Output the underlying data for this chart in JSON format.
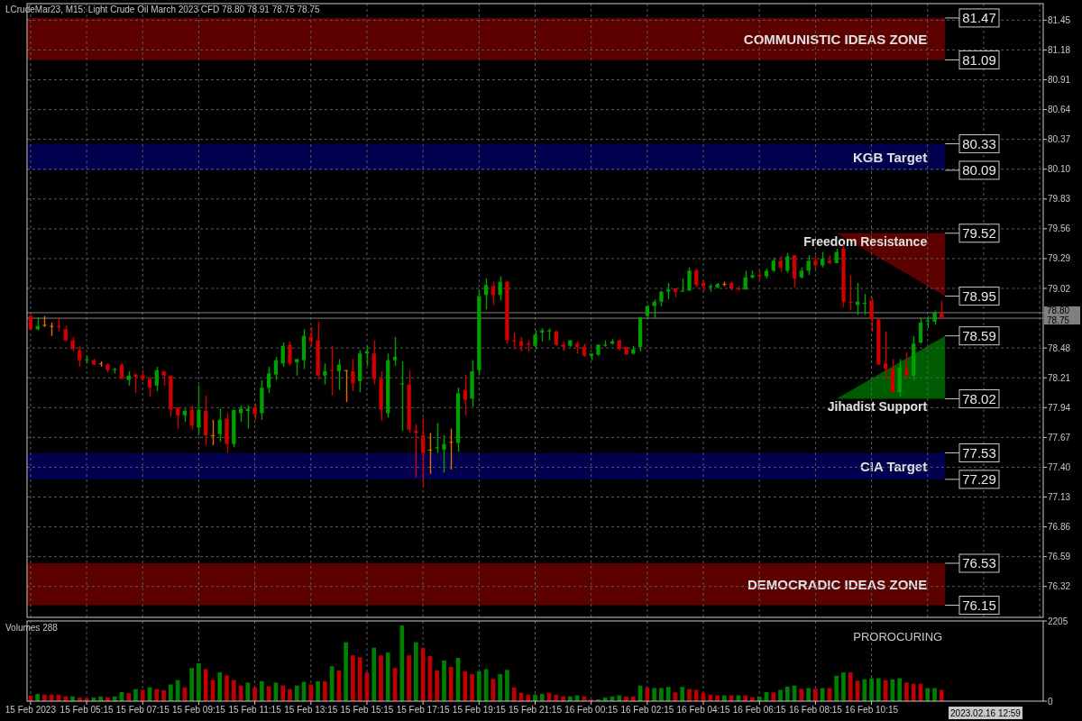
{
  "chart_data": [
    {
      "type": "candlestick",
      "title": "LCrudeMar23, M15:  Light Crude Oil March 2023 CFD  78.80 78.91 78.75 78.75",
      "categories": [
        null,
        null,
        null,
        null,
        null,
        null,
        null,
        null,
        null,
        null,
        null,
        null,
        null,
        null,
        null,
        null,
        null,
        null,
        null,
        null,
        null,
        null,
        null,
        null,
        null,
        null,
        null,
        null,
        null,
        null,
        null,
        null,
        null,
        null,
        null,
        null,
        null,
        null,
        null,
        null,
        null,
        null,
        null,
        null,
        null,
        null,
        null,
        null,
        null,
        null,
        null,
        null,
        null,
        null,
        null,
        null,
        null,
        null,
        null,
        null,
        null,
        null,
        null,
        null,
        null,
        null,
        null,
        null,
        null,
        null,
        null,
        null,
        null,
        null,
        null,
        null,
        null,
        null,
        null,
        null,
        null,
        null,
        null,
        null,
        null,
        null,
        null,
        null,
        null,
        null,
        null,
        null,
        null,
        null,
        null,
        null,
        null,
        null,
        null,
        null,
        null,
        null,
        null,
        null,
        null,
        null,
        null,
        null,
        null,
        null,
        null,
        null,
        null,
        null,
        null,
        null,
        null,
        null,
        null,
        null,
        null,
        null,
        null,
        null,
        null,
        null,
        null,
        null,
        null,
        null,
        null,
        null,
        null,
        null,
        null,
        null,
        null,
        null,
        null,
        null,
        null,
        null,
        null,
        null,
        null
      ],
      "ohlc": [
        [
          78.77,
          78.78,
          78.65,
          78.65
        ],
        [
          78.65,
          78.76,
          78.64,
          78.68
        ],
        [
          78.69,
          78.77,
          78.67,
          78.69
        ],
        [
          78.68,
          78.71,
          78.59,
          78.68
        ],
        [
          78.68,
          78.76,
          78.63,
          78.67
        ],
        [
          78.65,
          78.68,
          78.54,
          78.55
        ],
        [
          78.55,
          78.58,
          78.45,
          78.47
        ],
        [
          78.46,
          78.5,
          78.31,
          78.37
        ],
        [
          78.37,
          78.41,
          78.34,
          78.38
        ],
        [
          78.37,
          78.38,
          78.33,
          78.33
        ],
        [
          78.34,
          78.36,
          78.31,
          78.34
        ],
        [
          78.33,
          78.34,
          78.26,
          78.28
        ],
        [
          78.28,
          78.3,
          78.25,
          78.29
        ],
        [
          78.33,
          78.34,
          78.2,
          78.2
        ],
        [
          78.19,
          78.27,
          78.14,
          78.23
        ],
        [
          78.24,
          78.25,
          78.07,
          78.22
        ],
        [
          78.23,
          78.28,
          78.18,
          78.2
        ],
        [
          78.2,
          78.22,
          78.04,
          78.12
        ],
        [
          78.14,
          78.31,
          78.09,
          78.28
        ],
        [
          78.27,
          78.27,
          78.14,
          78.23
        ],
        [
          78.23,
          78.23,
          77.86,
          77.92
        ],
        [
          77.94,
          77.94,
          77.75,
          77.87
        ],
        [
          77.87,
          77.93,
          77.81,
          77.91
        ],
        [
          77.92,
          77.96,
          77.74,
          77.78
        ],
        [
          77.76,
          78.14,
          77.69,
          77.92
        ],
        [
          77.91,
          78.05,
          77.6,
          77.69
        ],
        [
          77.69,
          77.83,
          77.6,
          77.69
        ],
        [
          77.7,
          77.93,
          77.63,
          77.83
        ],
        [
          77.84,
          77.89,
          77.53,
          77.61
        ],
        [
          77.61,
          77.92,
          77.58,
          77.92
        ],
        [
          77.89,
          77.96,
          77.81,
          77.93
        ],
        [
          77.91,
          77.96,
          77.75,
          77.93
        ],
        [
          77.94,
          77.98,
          77.83,
          77.88
        ],
        [
          77.89,
          78.19,
          77.83,
          78.12
        ],
        [
          78.12,
          78.31,
          78.07,
          78.25
        ],
        [
          78.24,
          78.4,
          78.19,
          78.37
        ],
        [
          78.34,
          78.53,
          78.31,
          78.5
        ],
        [
          78.51,
          78.54,
          78.32,
          78.34
        ],
        [
          78.35,
          78.38,
          78.23,
          78.38
        ],
        [
          78.37,
          78.65,
          78.29,
          78.59
        ],
        [
          78.58,
          78.67,
          78.49,
          78.54
        ],
        [
          78.55,
          78.72,
          78.19,
          78.23
        ],
        [
          78.23,
          78.34,
          78.15,
          78.27
        ],
        [
          78.28,
          78.5,
          78.05,
          78.27
        ],
        [
          78.27,
          78.38,
          78.1,
          78.33
        ],
        [
          78.28,
          78.28,
          77.99,
          78.28
        ],
        [
          78.27,
          78.38,
          78.09,
          78.16
        ],
        [
          78.18,
          78.46,
          78.08,
          78.43
        ],
        [
          78.43,
          78.5,
          78.32,
          78.45
        ],
        [
          78.43,
          78.55,
          78.15,
          78.2
        ],
        [
          78.2,
          78.27,
          77.82,
          77.92
        ],
        [
          77.89,
          78.43,
          77.85,
          78.37
        ],
        [
          78.37,
          78.58,
          78.32,
          78.4
        ],
        [
          78.15,
          78.36,
          77.73,
          78.16
        ],
        [
          78.15,
          78.28,
          77.71,
          77.74
        ],
        [
          77.73,
          77.79,
          77.31,
          77.71
        ],
        [
          77.69,
          77.85,
          77.22,
          77.53
        ],
        [
          77.56,
          77.71,
          77.34,
          77.56
        ],
        [
          77.57,
          77.8,
          77.53,
          77.58
        ],
        [
          77.56,
          77.69,
          77.35,
          77.61
        ],
        [
          77.63,
          77.75,
          77.38,
          77.63
        ],
        [
          77.62,
          78.12,
          77.54,
          78.07
        ],
        [
          78.1,
          78.24,
          77.87,
          78.01
        ],
        [
          78.02,
          78.37,
          77.95,
          78.27
        ],
        [
          78.28,
          79.01,
          78.23,
          78.95
        ],
        [
          78.96,
          79.11,
          78.83,
          79.05
        ],
        [
          79.04,
          79.08,
          78.87,
          78.96
        ],
        [
          78.96,
          79.13,
          78.91,
          79.08
        ],
        [
          79.08,
          79.09,
          78.52,
          78.55
        ],
        [
          78.55,
          78.62,
          78.47,
          78.54
        ],
        [
          78.54,
          78.58,
          78.45,
          78.5
        ],
        [
          78.52,
          78.55,
          78.45,
          78.51
        ],
        [
          78.5,
          78.64,
          78.47,
          78.6
        ],
        [
          78.62,
          78.66,
          78.54,
          78.64
        ],
        [
          78.63,
          78.66,
          78.55,
          78.64
        ],
        [
          78.63,
          78.64,
          78.5,
          78.51
        ],
        [
          78.51,
          78.54,
          78.45,
          78.49
        ],
        [
          78.5,
          78.55,
          78.49,
          78.55
        ],
        [
          78.52,
          78.54,
          78.43,
          78.49
        ],
        [
          78.49,
          78.52,
          78.4,
          78.41
        ],
        [
          78.41,
          78.43,
          78.37,
          78.43
        ],
        [
          78.42,
          78.51,
          78.41,
          78.51
        ],
        [
          78.5,
          78.55,
          78.49,
          78.51
        ],
        [
          78.52,
          78.56,
          78.51,
          78.54
        ],
        [
          78.55,
          78.55,
          78.46,
          78.47
        ],
        [
          78.49,
          78.49,
          78.42,
          78.42
        ],
        [
          78.43,
          78.5,
          78.42,
          78.47
        ],
        [
          78.49,
          78.76,
          78.45,
          78.76
        ],
        [
          78.77,
          78.87,
          78.74,
          78.86
        ],
        [
          78.86,
          78.92,
          78.75,
          78.9
        ],
        [
          78.9,
          79.0,
          78.86,
          78.99
        ],
        [
          78.99,
          79.07,
          78.92,
          79.01
        ],
        [
          79.02,
          79.02,
          78.94,
          78.99
        ],
        [
          78.99,
          79.11,
          78.99,
          79.0
        ],
        [
          79.0,
          79.21,
          79.0,
          79.18
        ],
        [
          79.18,
          79.2,
          79.03,
          79.05
        ],
        [
          79.07,
          79.09,
          78.99,
          79.04
        ],
        [
          79.03,
          79.06,
          78.99,
          79.04
        ],
        [
          79.03,
          79.07,
          79.02,
          79.06
        ],
        [
          79.06,
          79.08,
          79.04,
          79.06
        ],
        [
          79.07,
          79.08,
          79.0,
          79.02
        ],
        [
          79.02,
          79.04,
          79.0,
          79.01
        ],
        [
          79.01,
          79.18,
          79.01,
          79.12
        ],
        [
          79.12,
          79.18,
          79.11,
          79.14
        ],
        [
          79.14,
          79.18,
          79.1,
          79.13
        ],
        [
          79.13,
          79.2,
          79.11,
          79.18
        ],
        [
          79.18,
          79.3,
          79.17,
          79.27
        ],
        [
          79.27,
          79.31,
          79.17,
          79.21
        ],
        [
          79.18,
          79.34,
          79.16,
          79.31
        ],
        [
          79.32,
          79.32,
          79.03,
          79.11
        ],
        [
          79.12,
          79.21,
          79.11,
          79.18
        ],
        [
          79.18,
          79.32,
          79.14,
          79.27
        ],
        [
          79.27,
          79.32,
          79.2,
          79.23
        ],
        [
          79.23,
          79.35,
          79.21,
          79.29
        ],
        [
          79.27,
          79.32,
          79.24,
          79.25
        ],
        [
          79.25,
          79.38,
          79.25,
          79.35
        ],
        [
          79.38,
          79.42,
          78.85,
          78.9
        ],
        [
          78.9,
          79.14,
          78.82,
          78.89
        ],
        [
          78.87,
          79.07,
          78.78,
          78.9
        ],
        [
          78.88,
          78.97,
          78.78,
          78.89
        ],
        [
          78.91,
          78.94,
          78.63,
          78.74
        ],
        [
          78.74,
          78.75,
          78.33,
          78.33
        ],
        [
          78.34,
          78.63,
          78.2,
          78.29
        ],
        [
          78.29,
          78.38,
          78.08,
          78.08
        ],
        [
          78.08,
          78.38,
          78.04,
          78.3
        ],
        [
          78.29,
          78.44,
          78.22,
          78.23
        ],
        [
          78.23,
          78.59,
          78.19,
          78.52
        ],
        [
          78.53,
          78.76,
          78.52,
          78.71
        ],
        [
          78.72,
          78.77,
          78.66,
          78.73
        ],
        [
          78.72,
          78.82,
          78.69,
          78.8
        ],
        [
          78.8,
          78.91,
          78.75,
          78.75
        ],
        null,
        null,
        null,
        null,
        null,
        null,
        null,
        null,
        null,
        null,
        null,
        null,
        null,
        null
      ],
      "ylim": [
        76.04,
        81.6
      ],
      "yticks": [
        81.45,
        81.18,
        80.91,
        80.64,
        80.37,
        {
          "value": 80.1,
          "label": "80.10"
        },
        79.83,
        79.56,
        79.29,
        79.02,
        78.48,
        78.21,
        77.94,
        77.67,
        {
          "value": 77.4,
          "label": "77.40"
        },
        77.13,
        76.86,
        76.59,
        76.32
      ],
      "grid": true,
      "bands": [
        {
          "axis": "y",
          "from": 81.09,
          "to": 81.47,
          "label": "COMMUNISTIC IDEAS ZONE",
          "color": "#5c0000"
        },
        {
          "axis": "y",
          "from": 80.09,
          "to": 80.33,
          "label": "KGB Target",
          "color": "#00004f"
        },
        {
          "axis": "y",
          "from": 77.29,
          "to": 77.53,
          "label": "CIA Target",
          "color": "#00004f"
        },
        {
          "axis": "y",
          "from": 76.15,
          "to": 76.53,
          "label": "DEMOCRADIC IDEAS ZONE",
          "color": "#5c0000"
        }
      ],
      "ref_lines": [
        {
          "axis": "y",
          "value": 78.8,
          "label": "78.80",
          "color": "#808080"
        },
        {
          "axis": "y",
          "value": 78.75,
          "label": "78.75",
          "color": "#808080"
        },
        {
          "axis": "y",
          "value": 81.47,
          "label": "81.47"
        },
        {
          "axis": "y",
          "value": 81.09,
          "label": "81.09"
        },
        {
          "axis": "y",
          "value": 80.33,
          "label": "80.33"
        },
        {
          "axis": "y",
          "value": 80.09,
          "label": "80.09"
        },
        {
          "axis": "y",
          "value": 77.53,
          "label": "77.53"
        },
        {
          "axis": "y",
          "value": 77.29,
          "label": "77.29"
        },
        {
          "axis": "y",
          "value": 76.53,
          "label": "76.53"
        },
        {
          "axis": "y",
          "value": 76.15,
          "label": "76.15"
        },
        {
          "axis": "y",
          "value": 79.52,
          "label": "79.52"
        },
        {
          "axis": "y",
          "value": 78.95,
          "label": "78.95"
        },
        {
          "axis": "y",
          "value": 78.59,
          "label": "78.59"
        },
        {
          "axis": "y",
          "value": 78.02,
          "label": "78.02"
        }
      ],
      "annotations": [
        "Freedom Resistance",
        "Jihadist Support"
      ]
    },
    {
      "type": "bar",
      "categories": [
        "15 Feb 2023",
        null,
        null,
        null,
        null,
        null,
        null,
        null,
        "15 Feb 05:15",
        null,
        null,
        null,
        null,
        null,
        null,
        null,
        "15 Feb 07:15",
        null,
        null,
        null,
        null,
        null,
        null,
        null,
        "15 Feb 09:15",
        null,
        null,
        null,
        null,
        null,
        null,
        null,
        "15 Feb 11:15",
        null,
        null,
        null,
        null,
        null,
        null,
        null,
        "15 Feb 13:15",
        null,
        null,
        null,
        null,
        null,
        null,
        null,
        "15 Feb 15:15",
        null,
        null,
        null,
        null,
        null,
        null,
        null,
        "15 Feb 17:15",
        null,
        null,
        null,
        null,
        null,
        null,
        null,
        "15 Feb 19:15",
        null,
        null,
        null,
        null,
        null,
        null,
        null,
        "15 Feb 21:15",
        null,
        null,
        null,
        null,
        null,
        null,
        null,
        "16 Feb 00:15",
        null,
        null,
        null,
        null,
        null,
        null,
        null,
        "16 Feb 02:15",
        null,
        null,
        null,
        null,
        null,
        null,
        null,
        "16 Feb 04:15",
        null,
        null,
        null,
        null,
        null,
        null,
        null,
        "16 Feb 06:15",
        null,
        null,
        null,
        null,
        null,
        null,
        null,
        "16 Feb 08:15",
        null,
        null,
        null,
        null,
        null,
        null,
        null,
        "16 Feb 10:15",
        null,
        null,
        null,
        null,
        null,
        null,
        null,
        null,
        null,
        null,
        null,
        null,
        null,
        null,
        null,
        null,
        null,
        null,
        null,
        null,
        null,
        null,
        null,
        null
      ],
      "values": [
        150,
        200,
        180,
        180,
        180,
        130,
        130,
        100,
        80,
        100,
        130,
        110,
        130,
        250,
        220,
        330,
        310,
        380,
        330,
        300,
        460,
        580,
        380,
        910,
        1040,
        880,
        580,
        790,
        710,
        580,
        430,
        510,
        380,
        550,
        410,
        510,
        430,
        330,
        430,
        530,
        460,
        550,
        550,
        960,
        840,
        1620,
        1260,
        1210,
        790,
        1470,
        1260,
        1340,
        910,
        2080,
        1260,
        1620,
        1470,
        1240,
        840,
        1120,
        940,
        1190,
        820,
        740,
        820,
        880,
        610,
        740,
        860,
        380,
        230,
        180,
        180,
        200,
        230,
        180,
        130,
        130,
        160,
        130,
        50,
        50,
        100,
        130,
        160,
        130,
        130,
        430,
        370,
        360,
        360,
        390,
        240,
        390,
        330,
        310,
        230,
        180,
        160,
        160,
        160,
        160,
        160,
        110,
        130,
        250,
        240,
        310,
        400,
        430,
        340,
        360,
        340,
        360,
        360,
        700,
        790,
        790,
        560,
        600,
        630,
        630,
        580,
        600,
        630,
        510,
        480,
        480,
        360,
        360,
        310,
        null,
        null,
        null,
        null,
        null,
        null,
        null,
        null,
        null,
        null,
        null,
        null,
        null,
        null
      ],
      "colors": [
        "#c00000",
        "#008000",
        "#c00000",
        "#c00000",
        "#c00000",
        "#c00000",
        "#008000",
        "#c00000",
        "#c00000",
        "#008000",
        "#008000",
        "#c00000",
        "#008000",
        "#008000",
        "#c00000",
        "#008000",
        "#c00000",
        "#008000",
        "#c00000",
        "#c00000",
        "#008000",
        "#008000",
        "#c00000",
        "#008000",
        "#008000",
        "#c00000",
        "#c00000",
        "#008000",
        "#c00000",
        "#c00000",
        "#c00000",
        "#008000",
        "#c00000",
        "#008000",
        "#c00000",
        "#008000",
        "#c00000",
        "#c00000",
        "#008000",
        "#008000",
        "#c00000",
        "#008000",
        "#c00000",
        "#008000",
        "#c00000",
        "#008000",
        "#c00000",
        "#c00000",
        "#c00000",
        "#008000",
        "#c00000",
        "#008000",
        "#c00000",
        "#008000",
        "#c00000",
        "#008000",
        "#c00000",
        "#c00000",
        "#c00000",
        "#008000",
        "#c00000",
        "#008000",
        "#c00000",
        "#c00000",
        "#008000",
        "#008000",
        "#c00000",
        "#008000",
        "#008000",
        "#c00000",
        "#c00000",
        "#c00000",
        "#008000",
        "#008000",
        "#c00000",
        "#c00000",
        "#c00000",
        "#008000",
        "#008000",
        "#c00000",
        "#c00000",
        "#008000",
        "#008000",
        "#008000",
        "#008000",
        "#c00000",
        "#c00000",
        "#008000",
        "#c00000",
        "#008000",
        "#008000",
        "#008000",
        "#c00000",
        "#008000",
        "#c00000",
        "#c00000",
        "#c00000",
        "#c00000",
        "#c00000",
        "#008000",
        "#c00000",
        "#008000",
        "#c00000",
        "#c00000",
        "#008000",
        "#008000",
        "#c00000",
        "#008000",
        "#008000",
        "#008000",
        "#c00000",
        "#008000",
        "#c00000",
        "#008000",
        "#c00000",
        "#008000",
        "#008000",
        "#c00000",
        "#c00000",
        "#008000",
        "#008000",
        "#008000",
        "#c00000",
        "#008000",
        "#008000",
        "#c00000",
        "#c00000",
        "#c00000",
        "#008000",
        "#008000",
        "#c00000",
        null,
        null,
        null,
        null,
        null,
        null,
        null,
        null,
        null,
        null,
        null,
        null,
        null,
        null
      ],
      "ylim": [
        0,
        2205
      ],
      "yticks": [
        0,
        2205
      ],
      "grid": "x",
      "annotations": [
        "Volumes 288",
        "PROROCURING",
        "2023.02.16 12:59"
      ]
    }
  ]
}
